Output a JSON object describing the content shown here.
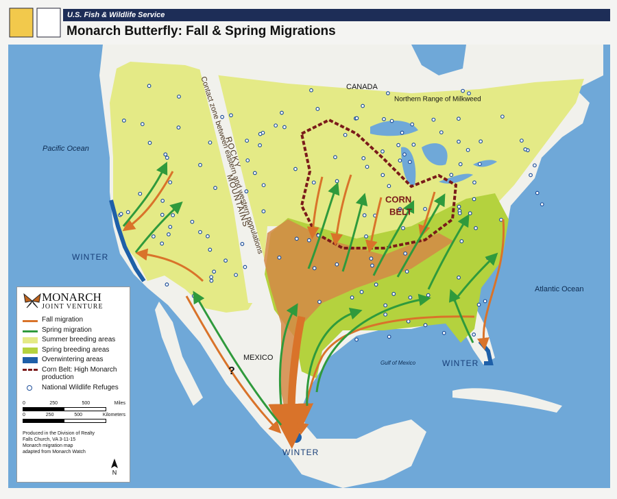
{
  "header": {
    "agency": "U.S. Fish & Wildlife Service",
    "title": "Monarch Butterfly: Fall & Spring Migrations"
  },
  "map_labels": {
    "canada": "CANADA",
    "milkweed": "Northern Range of Milkweed",
    "pacific": "Pacific Ocean",
    "atlantic": "Atlantic Ocean",
    "gulf": "Gulf of Mexico",
    "mexico": "MEXICO",
    "winter_west": "WINTER",
    "winter_east": "WINTER",
    "winter_mexico": "WINTER",
    "corn": "CORN",
    "belt": "BELT",
    "rocky": "ROCKY",
    "mountains": "MOUNTAINS",
    "contact_zone": "Contact zone between eastern and western populations",
    "question": "?"
  },
  "legend": {
    "logo_top": "MONARCH",
    "logo_bottom": "JOINT VENTURE",
    "items": [
      "Fall migration",
      "Spring migration",
      "Summer breeding areas",
      "Spring breeding areas",
      "Overwintering areas",
      "Corn Belt: High Monarch production",
      "National Wildlife Refuges"
    ]
  },
  "scale": {
    "miles": {
      "ticks": [
        "0",
        "250",
        "500"
      ],
      "unit": "Miles"
    },
    "km": {
      "ticks": [
        "0",
        "250",
        "500"
      ],
      "unit": "Kilometers"
    }
  },
  "credit": [
    "Produced in the Division of Realty",
    "Falls Church, VA 3-11-15",
    "Monarch migration map",
    "adapted from Monarch Watch"
  ],
  "north": "N"
}
